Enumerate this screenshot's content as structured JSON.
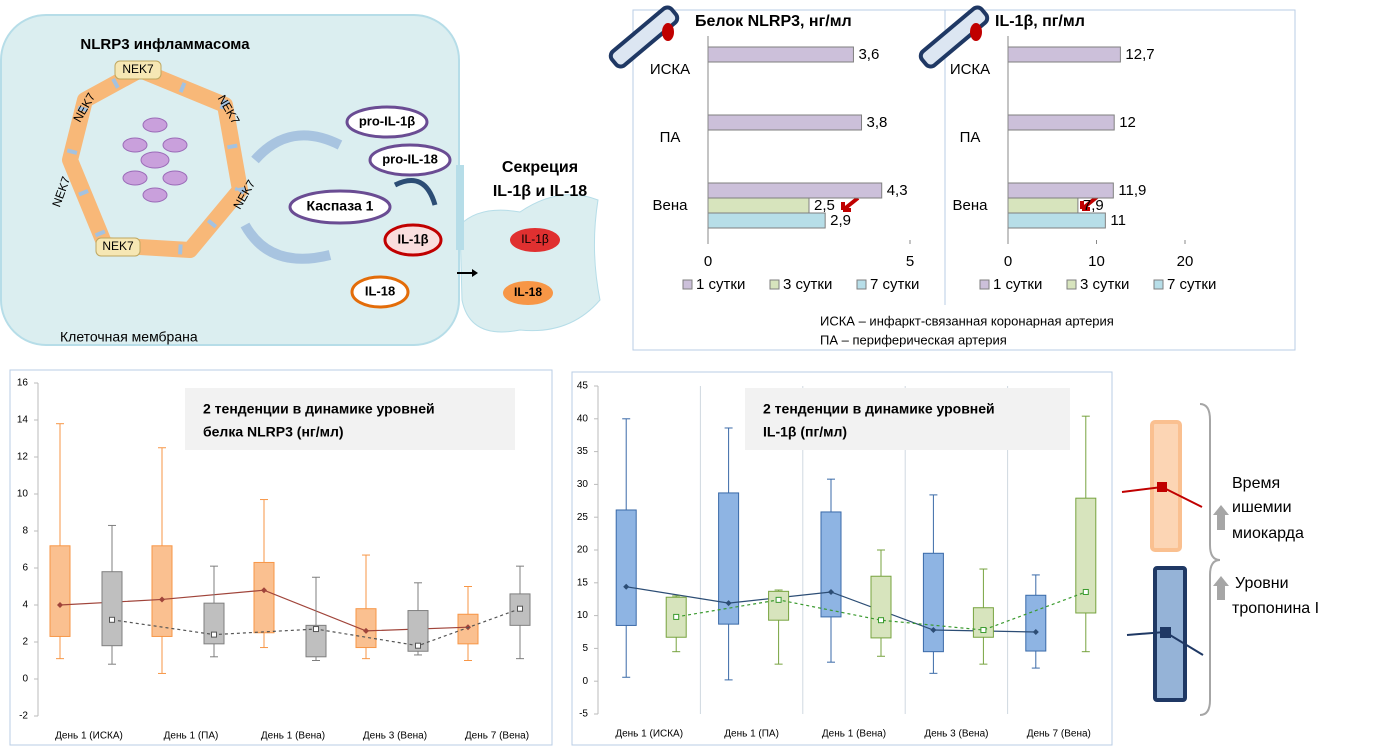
{
  "diagram": {
    "title": "NLRP3 инфламмасома",
    "nek7_labels": [
      "NEK7",
      "NEK7",
      "NEK7",
      "NEK7",
      "NEK7",
      "NEK7"
    ],
    "pro_il1b": "pro-IL-1β",
    "pro_il18": "pro-IL-18",
    "caspase": "Каспаза 1",
    "il1b": "IL-1β",
    "il18": "IL-18",
    "secretion": [
      "Секреция",
      "IL-1β и IL-18"
    ],
    "membrane": "Клеточная мембрана",
    "secreted_il1b": "IL-1β",
    "secreted_il18": "IL-18"
  },
  "notes": [
    "ИСКА – инфаркт-связанная коронарная артерия",
    "ПА – периферическая артерия"
  ],
  "legend_diagram": {
    "ischemia": [
      "Время",
      "ишемии",
      "миокарда"
    ],
    "troponin": [
      "Уровни",
      "тропонина I"
    ]
  },
  "chart_data": [
    {
      "type": "bar",
      "orientation": "horizontal",
      "title": "Белок NLRP3, нг/мл",
      "categories": [
        "ИСКА",
        "ПА",
        "Вена"
      ],
      "series": [
        {
          "name": "1 сутки",
          "color": "#ccc0da",
          "values": [
            3.6,
            3.8,
            4.3
          ],
          "value_labels": [
            "3,6",
            "3,8",
            "4,3"
          ]
        },
        {
          "name": "3 сутки",
          "color": "#d7e4bd",
          "values": [
            null,
            null,
            2.5
          ],
          "value_labels": [
            null,
            null,
            "2,5"
          ]
        },
        {
          "name": "7 сутки",
          "color": "#b7dee8",
          "values": [
            null,
            null,
            2.9
          ],
          "value_labels": [
            null,
            null,
            "2,9"
          ]
        }
      ],
      "xlim": [
        0,
        5
      ],
      "xticks": [
        0,
        5
      ],
      "legend": "bottom"
    },
    {
      "type": "bar",
      "orientation": "horizontal",
      "title": "IL-1β, пг/мл",
      "categories": [
        "ИСКА",
        "ПА",
        "Вена"
      ],
      "series": [
        {
          "name": "1 сутки",
          "color": "#ccc0da",
          "values": [
            12.7,
            12,
            11.9
          ],
          "value_labels": [
            "12,7",
            "12",
            "11,9"
          ]
        },
        {
          "name": "3 сутки",
          "color": "#d7e4bd",
          "values": [
            null,
            null,
            7.9
          ],
          "value_labels": [
            null,
            null,
            "7,9"
          ]
        },
        {
          "name": "7 сутки",
          "color": "#b7dee8",
          "values": [
            null,
            null,
            11
          ],
          "value_labels": [
            null,
            null,
            "11"
          ]
        }
      ],
      "xlim": [
        0,
        20
      ],
      "xticks": [
        0,
        10,
        20
      ],
      "legend": "bottom"
    },
    {
      "type": "box",
      "annotation": [
        "2 тенденции в динамике уровней",
        "белка NLRP3 (нг/мл)"
      ],
      "categories": [
        "День 1 (ИСКА)",
        "День 1 (ПА)",
        "День 1 (Вена)",
        "День 3 (Вена)",
        "День 7 (Вена)"
      ],
      "series": [
        {
          "color": "#fac090",
          "edge_color": "#f79646",
          "line_color": "#a0443a",
          "line_style": "solid",
          "marker": "diamond",
          "whisker_high": [
            13.8,
            12.5,
            9.7,
            6.7,
            5.0
          ],
          "q3": [
            7.2,
            7.2,
            6.3,
            3.8,
            3.5
          ],
          "q1": [
            2.3,
            2.3,
            2.5,
            1.7,
            1.9
          ],
          "whisker_low": [
            1.1,
            0.3,
            1.7,
            1.1,
            1.0
          ],
          "mean": [
            4.0,
            4.3,
            4.8,
            2.6,
            2.8
          ]
        },
        {
          "color": "#bfbfbf",
          "edge_color": "#7f7f7f",
          "line_color": "#555555",
          "line_style": "dashed",
          "marker": "square",
          "whisker_high": [
            8.3,
            6.1,
            5.5,
            5.2,
            6.1
          ],
          "q3": [
            5.8,
            4.1,
            2.9,
            3.7,
            4.6
          ],
          "q1": [
            1.8,
            1.9,
            1.2,
            1.5,
            2.9
          ],
          "whisker_low": [
            0.8,
            1.2,
            1.0,
            1.3,
            1.1
          ],
          "mean": [
            3.2,
            2.4,
            2.7,
            1.8,
            3.8
          ]
        }
      ],
      "ylim": [
        -2,
        16
      ],
      "yticks": [
        -2,
        0,
        2,
        4,
        6,
        8,
        10,
        12,
        14,
        16
      ]
    },
    {
      "type": "box",
      "annotation": [
        "2 тенденции в динамике уровней",
        "IL-1β (пг/мл)"
      ],
      "categories": [
        "День 1 (ИСКА)",
        "День 1 (ПА)",
        "День 1 (Вена)",
        "День 3 (Вена)",
        "День 7 (Вена)"
      ],
      "series": [
        {
          "color": "#8eb4e3",
          "edge_color": "#3a6aa8",
          "line_color": "#2c4d75",
          "line_style": "solid",
          "marker": "diamond",
          "whisker_high": [
            40,
            38.6,
            30.8,
            28.4,
            16.2
          ],
          "q3": [
            26.1,
            28.7,
            25.8,
            19.5,
            13.1
          ],
          "q1": [
            8.5,
            8.7,
            9.8,
            4.5,
            4.6
          ],
          "whisker_low": [
            0.6,
            0.2,
            2.9,
            1.2,
            2.0
          ],
          "mean": [
            14.4,
            11.9,
            13.6,
            7.8,
            7.5
          ]
        },
        {
          "color": "#d7e4bd",
          "edge_color": "#77a33f",
          "line_color": "#3a9a2e",
          "line_style": "dashed",
          "marker": "square",
          "whisker_high": [
            13.0,
            13.9,
            20.0,
            17.1,
            40.4
          ],
          "q3": [
            12.8,
            13.7,
            16.0,
            11.2,
            27.9
          ],
          "q1": [
            6.7,
            9.3,
            6.6,
            6.7,
            10.4
          ],
          "whisker_low": [
            4.5,
            2.6,
            3.8,
            2.6,
            4.5
          ],
          "mean": [
            9.8,
            12.4,
            9.3,
            7.8,
            13.6
          ]
        }
      ],
      "ylim": [
        -5,
        45
      ],
      "yticks": [
        -5,
        0,
        5,
        10,
        15,
        20,
        25,
        30,
        35,
        40,
        45
      ]
    }
  ]
}
